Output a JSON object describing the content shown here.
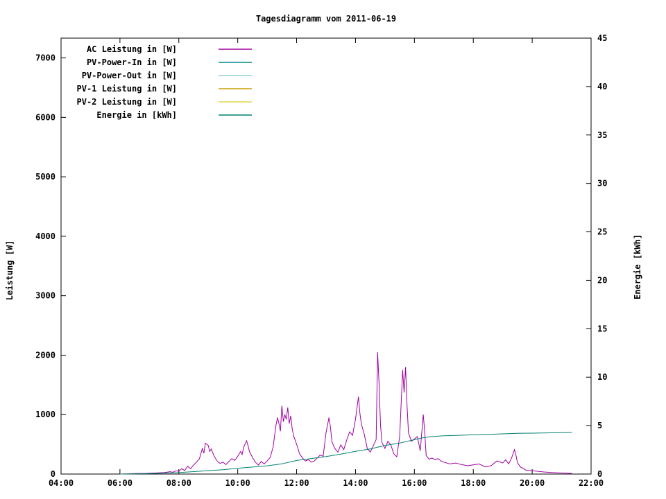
{
  "chart_data": {
    "type": "line",
    "title": "Tagesdiagramm vom 2011-06-19",
    "grid": false,
    "legend_position": "top-left-inside",
    "x_axis": {
      "range": [
        4,
        22
      ],
      "tick_values": [
        4,
        6,
        8,
        10,
        12,
        14,
        16,
        18,
        20,
        22
      ],
      "tick_labels": [
        "04:00",
        "06:00",
        "08:00",
        "10:00",
        "12:00",
        "14:00",
        "16:00",
        "18:00",
        "20:00",
        "22:00"
      ]
    },
    "y_left": {
      "label": "Leistung [W]",
      "range": [
        0,
        7333
      ],
      "tick_values": [
        0,
        1000,
        2000,
        3000,
        4000,
        5000,
        6000,
        7000
      ]
    },
    "y_right": {
      "label": "Energie [kWh]",
      "range": [
        0,
        45
      ],
      "tick_values": [
        0,
        5,
        10,
        15,
        20,
        25,
        30,
        35,
        40,
        45
      ]
    },
    "series": [
      {
        "name": "AC Leistung in [W]",
        "color": "#a000a0",
        "axis": "left",
        "points": [
          [
            6.0,
            0
          ],
          [
            6.3,
            5
          ],
          [
            6.6,
            10
          ],
          [
            6.9,
            12
          ],
          [
            7.2,
            18
          ],
          [
            7.5,
            25
          ],
          [
            7.7,
            40
          ],
          [
            7.8,
            30
          ],
          [
            7.9,
            55
          ],
          [
            8.0,
            45
          ],
          [
            8.1,
            90
          ],
          [
            8.2,
            60
          ],
          [
            8.3,
            130
          ],
          [
            8.4,
            90
          ],
          [
            8.5,
            150
          ],
          [
            8.6,
            200
          ],
          [
            8.7,
            260
          ],
          [
            8.8,
            430
          ],
          [
            8.85,
            350
          ],
          [
            8.9,
            520
          ],
          [
            9.0,
            480
          ],
          [
            9.05,
            380
          ],
          [
            9.1,
            420
          ],
          [
            9.2,
            300
          ],
          [
            9.3,
            220
          ],
          [
            9.4,
            180
          ],
          [
            9.5,
            200
          ],
          [
            9.6,
            160
          ],
          [
            9.7,
            210
          ],
          [
            9.8,
            260
          ],
          [
            9.9,
            230
          ],
          [
            10.0,
            300
          ],
          [
            10.1,
            380
          ],
          [
            10.15,
            330
          ],
          [
            10.2,
            450
          ],
          [
            10.3,
            560
          ],
          [
            10.35,
            480
          ],
          [
            10.4,
            380
          ],
          [
            10.5,
            280
          ],
          [
            10.6,
            200
          ],
          [
            10.7,
            150
          ],
          [
            10.8,
            210
          ],
          [
            10.9,
            170
          ],
          [
            11.0,
            220
          ],
          [
            11.1,
            280
          ],
          [
            11.2,
            450
          ],
          [
            11.3,
            820
          ],
          [
            11.35,
            950
          ],
          [
            11.4,
            850
          ],
          [
            11.45,
            720
          ],
          [
            11.5,
            1150
          ],
          [
            11.55,
            880
          ],
          [
            11.6,
            1000
          ],
          [
            11.65,
            920
          ],
          [
            11.7,
            1120
          ],
          [
            11.75,
            850
          ],
          [
            11.8,
            980
          ],
          [
            11.85,
            760
          ],
          [
            11.9,
            640
          ],
          [
            12.0,
            500
          ],
          [
            12.1,
            340
          ],
          [
            12.2,
            270
          ],
          [
            12.3,
            220
          ],
          [
            12.4,
            240
          ],
          [
            12.5,
            200
          ],
          [
            12.6,
            220
          ],
          [
            12.7,
            270
          ],
          [
            12.8,
            320
          ],
          [
            12.9,
            300
          ],
          [
            13.0,
            700
          ],
          [
            13.1,
            950
          ],
          [
            13.15,
            780
          ],
          [
            13.2,
            540
          ],
          [
            13.3,
            430
          ],
          [
            13.4,
            370
          ],
          [
            13.5,
            490
          ],
          [
            13.6,
            410
          ],
          [
            13.7,
            570
          ],
          [
            13.8,
            710
          ],
          [
            13.9,
            650
          ],
          [
            14.0,
            920
          ],
          [
            14.1,
            1300
          ],
          [
            14.15,
            1020
          ],
          [
            14.2,
            840
          ],
          [
            14.3,
            660
          ],
          [
            14.4,
            430
          ],
          [
            14.5,
            370
          ],
          [
            14.6,
            470
          ],
          [
            14.7,
            580
          ],
          [
            14.75,
            2050
          ],
          [
            14.8,
            1520
          ],
          [
            14.85,
            820
          ],
          [
            14.9,
            530
          ],
          [
            15.0,
            430
          ],
          [
            15.1,
            550
          ],
          [
            15.2,
            490
          ],
          [
            15.3,
            340
          ],
          [
            15.4,
            290
          ],
          [
            15.5,
            630
          ],
          [
            15.6,
            1750
          ],
          [
            15.65,
            1370
          ],
          [
            15.7,
            1800
          ],
          [
            15.75,
            1160
          ],
          [
            15.8,
            690
          ],
          [
            15.9,
            550
          ],
          [
            16.0,
            590
          ],
          [
            16.1,
            630
          ],
          [
            16.2,
            390
          ],
          [
            16.3,
            1000
          ],
          [
            16.35,
            710
          ],
          [
            16.4,
            310
          ],
          [
            16.5,
            250
          ],
          [
            16.6,
            270
          ],
          [
            16.7,
            240
          ],
          [
            16.8,
            260
          ],
          [
            16.9,
            220
          ],
          [
            17.0,
            200
          ],
          [
            17.2,
            170
          ],
          [
            17.4,
            185
          ],
          [
            17.6,
            160
          ],
          [
            17.8,
            140
          ],
          [
            18.0,
            155
          ],
          [
            18.2,
            170
          ],
          [
            18.4,
            120
          ],
          [
            18.6,
            140
          ],
          [
            18.8,
            220
          ],
          [
            19.0,
            185
          ],
          [
            19.1,
            240
          ],
          [
            19.2,
            170
          ],
          [
            19.3,
            270
          ],
          [
            19.4,
            410
          ],
          [
            19.45,
            310
          ],
          [
            19.5,
            190
          ],
          [
            19.6,
            120
          ],
          [
            19.7,
            90
          ],
          [
            19.8,
            65
          ],
          [
            20.0,
            55
          ],
          [
            20.2,
            45
          ],
          [
            20.4,
            35
          ],
          [
            20.6,
            28
          ],
          [
            20.8,
            22
          ],
          [
            21.0,
            18
          ],
          [
            21.2,
            14
          ],
          [
            21.35,
            10
          ]
        ]
      },
      {
        "name": "PV-Power-In in [W]",
        "color": "#008b8b",
        "axis": "left",
        "points": []
      },
      {
        "name": "PV-Power-Out in [W]",
        "color": "#8dd3d3",
        "axis": "left",
        "points": []
      },
      {
        "name": "PV-1 Leistung in [W]",
        "color": "#c8a000",
        "axis": "left",
        "points": []
      },
      {
        "name": "PV-2 Leistung in [W]",
        "color": "#e0d84a",
        "axis": "left",
        "points": []
      },
      {
        "name": "Energie in [kWh]",
        "color": "#008070",
        "axis": "right",
        "points": [
          [
            6.0,
            0
          ],
          [
            6.5,
            0.02
          ],
          [
            7.0,
            0.05
          ],
          [
            7.5,
            0.1
          ],
          [
            8.0,
            0.15
          ],
          [
            8.5,
            0.25
          ],
          [
            9.0,
            0.35
          ],
          [
            9.5,
            0.45
          ],
          [
            10.0,
            0.6
          ],
          [
            10.5,
            0.72
          ],
          [
            11.0,
            0.85
          ],
          [
            11.5,
            1.05
          ],
          [
            12.0,
            1.4
          ],
          [
            12.5,
            1.6
          ],
          [
            13.0,
            1.8
          ],
          [
            13.5,
            2.05
          ],
          [
            14.0,
            2.35
          ],
          [
            14.5,
            2.6
          ],
          [
            15.0,
            2.95
          ],
          [
            15.5,
            3.2
          ],
          [
            16.0,
            3.55
          ],
          [
            16.3,
            3.75
          ],
          [
            16.5,
            3.85
          ],
          [
            17.0,
            3.95
          ],
          [
            17.5,
            4.0
          ],
          [
            18.0,
            4.05
          ],
          [
            18.5,
            4.1
          ],
          [
            19.0,
            4.15
          ],
          [
            19.5,
            4.2
          ],
          [
            20.0,
            4.22
          ],
          [
            20.5,
            4.25
          ],
          [
            21.0,
            4.28
          ],
          [
            21.35,
            4.3
          ]
        ]
      }
    ]
  }
}
